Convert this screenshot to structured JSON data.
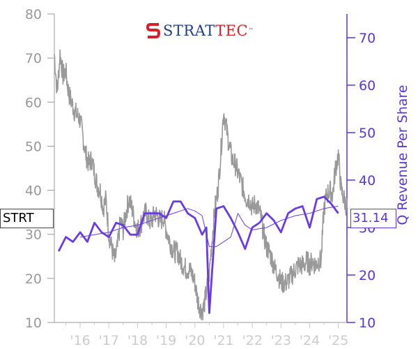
{
  "logo": {
    "text_first": "STRAT",
    "text_second": "TEC",
    "trademark": "™",
    "colors": {
      "first": "#1f3f8f",
      "second": "#d81f2a",
      "mark": "#d81f2a"
    },
    "icon": "strattec-s-mark-icon"
  },
  "colors": {
    "price": "#999999",
    "revenue": "#6a3be4",
    "axis_left": "#999999",
    "axis_right": "#5a35e0",
    "ticks_x": "#cccccc"
  },
  "tags": {
    "left": "STRT",
    "right": "31.14"
  },
  "chart_data": {
    "type": "line",
    "x_ticks": [
      "'16",
      "'17",
      "'18",
      "'19",
      "'20",
      "'21",
      "'22",
      "'23",
      "'24",
      "'25"
    ],
    "xlim": [
      2015.1,
      2025.3
    ],
    "left_axis": {
      "label": "",
      "ylim": [
        10,
        80
      ],
      "ticks": [
        10,
        20,
        30,
        40,
        50,
        60,
        70,
        80
      ]
    },
    "right_axis": {
      "label": "Q Revenue Per Share",
      "ylim": [
        10,
        75
      ],
      "ticks": [
        10,
        20,
        30,
        40,
        50,
        60,
        70
      ]
    },
    "series": [
      {
        "axis": "left",
        "style": "thick-noisy",
        "points": [
          [
            2015.1,
            71
          ],
          [
            2015.2,
            62
          ],
          [
            2015.3,
            71
          ],
          [
            2015.4,
            66
          ],
          [
            2015.5,
            67
          ],
          [
            2015.6,
            62
          ],
          [
            2015.7,
            60
          ],
          [
            2015.8,
            58
          ],
          [
            2015.9,
            57
          ],
          [
            2016.0,
            56
          ],
          [
            2016.1,
            52
          ],
          [
            2016.2,
            48
          ],
          [
            2016.3,
            46
          ],
          [
            2016.4,
            47
          ],
          [
            2016.5,
            44
          ],
          [
            2016.6,
            41
          ],
          [
            2016.7,
            40
          ],
          [
            2016.8,
            36
          ],
          [
            2016.9,
            38
          ],
          [
            2017.0,
            30
          ],
          [
            2017.1,
            27
          ],
          [
            2017.2,
            24
          ],
          [
            2017.3,
            27
          ],
          [
            2017.4,
            33
          ],
          [
            2017.5,
            31
          ],
          [
            2017.6,
            35
          ],
          [
            2017.7,
            38
          ],
          [
            2017.8,
            36
          ],
          [
            2017.9,
            33
          ],
          [
            2018.0,
            31
          ],
          [
            2018.1,
            32
          ],
          [
            2018.2,
            34
          ],
          [
            2018.3,
            35
          ],
          [
            2018.4,
            33
          ],
          [
            2018.5,
            33
          ],
          [
            2018.6,
            35
          ],
          [
            2018.7,
            34
          ],
          [
            2018.8,
            33
          ],
          [
            2018.9,
            34
          ],
          [
            2019.0,
            31
          ],
          [
            2019.1,
            29
          ],
          [
            2019.2,
            27
          ],
          [
            2019.3,
            26
          ],
          [
            2019.4,
            26
          ],
          [
            2019.5,
            24
          ],
          [
            2019.6,
            23
          ],
          [
            2019.7,
            22
          ],
          [
            2019.8,
            22
          ],
          [
            2019.9,
            21
          ],
          [
            2020.0,
            19
          ],
          [
            2020.1,
            15
          ],
          [
            2020.2,
            13
          ],
          [
            2020.3,
            13
          ],
          [
            2020.4,
            17
          ],
          [
            2020.5,
            21
          ],
          [
            2020.6,
            29
          ],
          [
            2020.7,
            36
          ],
          [
            2020.8,
            40
          ],
          [
            2020.9,
            48
          ],
          [
            2021.0,
            58
          ],
          [
            2021.1,
            54
          ],
          [
            2021.2,
            50
          ],
          [
            2021.3,
            47
          ],
          [
            2021.4,
            46
          ],
          [
            2021.5,
            44
          ],
          [
            2021.6,
            42
          ],
          [
            2021.7,
            40
          ],
          [
            2021.8,
            38
          ],
          [
            2021.9,
            38
          ],
          [
            2022.0,
            36
          ],
          [
            2022.1,
            37
          ],
          [
            2022.2,
            36
          ],
          [
            2022.3,
            34
          ],
          [
            2022.4,
            30
          ],
          [
            2022.5,
            27
          ],
          [
            2022.6,
            26
          ],
          [
            2022.7,
            24
          ],
          [
            2022.8,
            22
          ],
          [
            2022.9,
            21
          ],
          [
            2023.0,
            19
          ],
          [
            2023.1,
            19
          ],
          [
            2023.2,
            19
          ],
          [
            2023.3,
            20
          ],
          [
            2023.4,
            21
          ],
          [
            2023.5,
            22
          ],
          [
            2023.6,
            23
          ],
          [
            2023.7,
            23
          ],
          [
            2023.8,
            23
          ],
          [
            2023.9,
            24
          ],
          [
            2024.0,
            23
          ],
          [
            2024.1,
            24
          ],
          [
            2024.2,
            23
          ],
          [
            2024.3,
            24
          ],
          [
            2024.4,
            24
          ],
          [
            2024.5,
            36
          ],
          [
            2024.6,
            39
          ],
          [
            2024.7,
            40
          ],
          [
            2024.8,
            39
          ],
          [
            2024.9,
            45
          ],
          [
            2025.0,
            48
          ],
          [
            2025.1,
            40
          ],
          [
            2025.2,
            38
          ],
          [
            2025.3,
            36
          ]
        ]
      },
      {
        "axis": "right",
        "style": "bold",
        "points": [
          [
            2015.25,
            25
          ],
          [
            2015.5,
            28
          ],
          [
            2015.75,
            27
          ],
          [
            2016.0,
            29
          ],
          [
            2016.25,
            27
          ],
          [
            2016.5,
            31
          ],
          [
            2016.75,
            29
          ],
          [
            2017.0,
            28
          ],
          [
            2017.25,
            31
          ],
          [
            2017.5,
            30.5
          ],
          [
            2017.75,
            28.5
          ],
          [
            2018.0,
            28.5
          ],
          [
            2018.25,
            33
          ],
          [
            2018.5,
            33
          ],
          [
            2018.75,
            33
          ],
          [
            2019.0,
            32
          ],
          [
            2019.25,
            35.5
          ],
          [
            2019.5,
            35.5
          ],
          [
            2019.75,
            33
          ],
          [
            2020.0,
            32
          ],
          [
            2020.25,
            28.5
          ],
          [
            2020.4,
            30
          ],
          [
            2020.5,
            12
          ],
          [
            2020.75,
            34
          ],
          [
            2021.0,
            34.5
          ],
          [
            2021.25,
            32
          ],
          [
            2021.5,
            29
          ],
          [
            2021.75,
            25.5
          ],
          [
            2022.0,
            30
          ],
          [
            2022.25,
            31
          ],
          [
            2022.5,
            33
          ],
          [
            2022.75,
            31.5
          ],
          [
            2023.0,
            29
          ],
          [
            2023.25,
            33
          ],
          [
            2023.5,
            34
          ],
          [
            2023.75,
            34.5
          ],
          [
            2024.0,
            30
          ],
          [
            2024.25,
            36
          ],
          [
            2024.5,
            36.5
          ],
          [
            2024.75,
            35
          ],
          [
            2025.0,
            33
          ]
        ]
      },
      {
        "axis": "right",
        "style": "thin",
        "points": [
          [
            2016.0,
            28
          ],
          [
            2016.5,
            28.5
          ],
          [
            2017.0,
            29
          ],
          [
            2017.5,
            30
          ],
          [
            2018.0,
            30.5
          ],
          [
            2018.5,
            31.5
          ],
          [
            2019.0,
            32.5
          ],
          [
            2019.5,
            33.5
          ],
          [
            2019.75,
            34
          ],
          [
            2020.0,
            33.5
          ],
          [
            2020.25,
            32.5
          ],
          [
            2020.5,
            26
          ],
          [
            2020.75,
            26
          ],
          [
            2021.0,
            27
          ],
          [
            2021.25,
            28
          ],
          [
            2021.5,
            33
          ],
          [
            2021.75,
            30.5
          ],
          [
            2022.0,
            29.5
          ],
          [
            2022.5,
            30
          ],
          [
            2023.0,
            31.5
          ],
          [
            2023.5,
            32.5
          ],
          [
            2024.0,
            33
          ],
          [
            2024.5,
            34
          ],
          [
            2025.0,
            34.5
          ]
        ]
      }
    ]
  }
}
